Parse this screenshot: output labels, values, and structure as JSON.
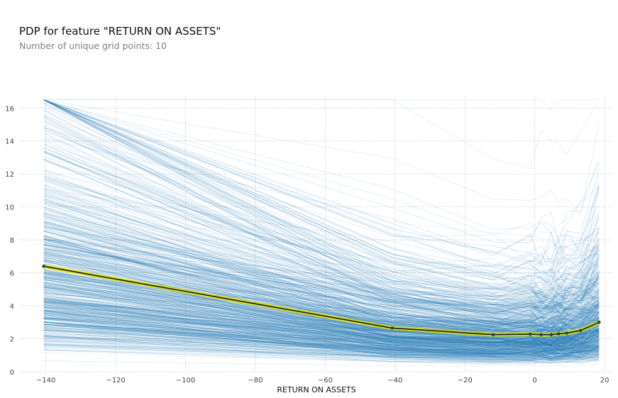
{
  "page": {
    "title": "PDP for feature \"RETURN ON ASSETS\"",
    "subtitle": "Number of unique grid points: 10"
  },
  "colors": {
    "ice_lines": "#1f77b4",
    "pdp_line": "#1a1a1a",
    "pdp_band": "#e6e600",
    "pdp_points": "#1e4d3a",
    "grid": "#c8c8c8",
    "tick_text": "#444444"
  },
  "chart_data": {
    "type": "line",
    "xlabel": "RETURN ON ASSETS",
    "ylabel": "",
    "xlim": [
      -145,
      22
    ],
    "ylim": [
      0,
      16.7
    ],
    "xticks": [
      -140,
      -120,
      -100,
      -80,
      -60,
      -40,
      -20,
      0,
      20
    ],
    "yticks": [
      0,
      2,
      4,
      6,
      8,
      10,
      12,
      14,
      16
    ],
    "grid": true,
    "grid_points": [
      -140.6,
      -40.8,
      -11.9,
      -1.3,
      1.8,
      4.7,
      6.8,
      9.1,
      13.1,
      18.4
    ],
    "series": [
      {
        "x": [
          -140.6,
          -40.8,
          -11.9,
          -1.3,
          1.8,
          4.7,
          6.8,
          9.1,
          13.1,
          18.4
        ],
        "values": [
          6.4,
          2.65,
          2.25,
          2.28,
          2.25,
          2.25,
          2.3,
          2.35,
          2.5,
          3.0
        ]
      }
    ],
    "ice_lines": {
      "count": 700,
      "typical_start_range": [
        3.0,
        9.0
      ],
      "typical_end_range": [
        0.7,
        5.0
      ],
      "max_value": 16.5,
      "min_value": 0.1
    }
  }
}
